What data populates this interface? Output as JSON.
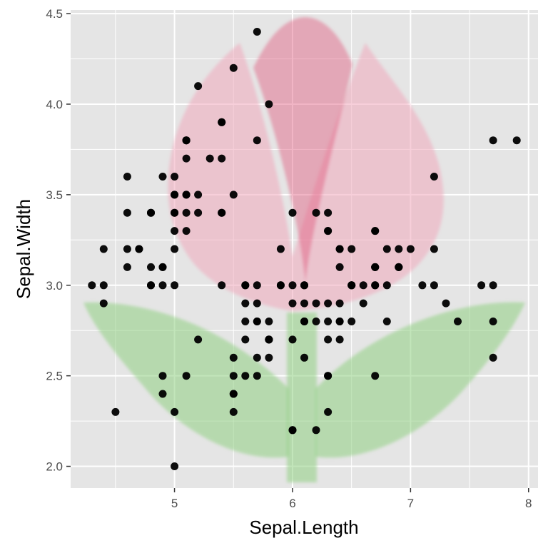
{
  "chart_data": {
    "type": "scatter",
    "xlabel": "Sepal.Length",
    "ylabel": "Sepal.Width",
    "xlim": [
      4.12,
      8.08
    ],
    "ylim": [
      1.88,
      4.52
    ],
    "x_ticks": [
      5,
      6,
      7,
      8
    ],
    "y_ticks": [
      2.0,
      2.5,
      3.0,
      3.5,
      4.0,
      4.5
    ],
    "x_tick_labels": [
      "5",
      "6",
      "7",
      "8"
    ],
    "y_tick_labels": [
      "2.0",
      "2.5",
      "3.0",
      "3.5",
      "4.0",
      "4.5"
    ],
    "grid": true,
    "legend": "none",
    "colors": {
      "panel_background": "#e5e5e5",
      "grid_line": "#ffffff",
      "point": "#000000",
      "petal_light": "#f0a8bc",
      "petal_dark": "#e05a7e",
      "stem": "#8fd081"
    },
    "background_image": "tulip",
    "points": [
      [
        5.1,
        3.5
      ],
      [
        4.9,
        3.0
      ],
      [
        4.7,
        3.2
      ],
      [
        4.6,
        3.1
      ],
      [
        5.0,
        3.6
      ],
      [
        5.4,
        3.9
      ],
      [
        4.6,
        3.4
      ],
      [
        5.0,
        3.4
      ],
      [
        4.4,
        2.9
      ],
      [
        4.9,
        3.1
      ],
      [
        5.4,
        3.7
      ],
      [
        4.8,
        3.4
      ],
      [
        4.8,
        3.0
      ],
      [
        4.3,
        3.0
      ],
      [
        5.8,
        4.0
      ],
      [
        5.7,
        4.4
      ],
      [
        5.4,
        3.9
      ],
      [
        5.1,
        3.5
      ],
      [
        5.7,
        3.8
      ],
      [
        5.1,
        3.8
      ],
      [
        5.4,
        3.4
      ],
      [
        5.1,
        3.7
      ],
      [
        4.6,
        3.6
      ],
      [
        5.1,
        3.3
      ],
      [
        4.8,
        3.4
      ],
      [
        5.0,
        3.0
      ],
      [
        5.0,
        3.4
      ],
      [
        5.2,
        3.5
      ],
      [
        5.2,
        3.4
      ],
      [
        4.7,
        3.2
      ],
      [
        4.8,
        3.1
      ],
      [
        5.4,
        3.4
      ],
      [
        5.2,
        4.1
      ],
      [
        5.5,
        4.2
      ],
      [
        4.9,
        3.1
      ],
      [
        5.0,
        3.2
      ],
      [
        5.5,
        3.5
      ],
      [
        4.9,
        3.6
      ],
      [
        4.4,
        3.0
      ],
      [
        5.1,
        3.4
      ],
      [
        5.0,
        3.5
      ],
      [
        4.5,
        2.3
      ],
      [
        4.4,
        3.2
      ],
      [
        5.0,
        3.5
      ],
      [
        5.1,
        3.8
      ],
      [
        4.8,
        3.0
      ],
      [
        5.1,
        3.8
      ],
      [
        4.6,
        3.2
      ],
      [
        5.3,
        3.7
      ],
      [
        5.0,
        3.3
      ],
      [
        7.0,
        3.2
      ],
      [
        6.4,
        3.2
      ],
      [
        6.9,
        3.1
      ],
      [
        5.5,
        2.3
      ],
      [
        6.5,
        2.8
      ],
      [
        5.7,
        2.8
      ],
      [
        6.3,
        3.3
      ],
      [
        4.9,
        2.4
      ],
      [
        6.6,
        2.9
      ],
      [
        5.2,
        2.7
      ],
      [
        5.0,
        2.0
      ],
      [
        5.9,
        3.0
      ],
      [
        6.0,
        2.2
      ],
      [
        6.1,
        2.9
      ],
      [
        5.6,
        2.9
      ],
      [
        6.7,
        3.1
      ],
      [
        5.6,
        3.0
      ],
      [
        5.8,
        2.7
      ],
      [
        6.2,
        2.2
      ],
      [
        5.6,
        2.5
      ],
      [
        5.9,
        3.2
      ],
      [
        6.1,
        2.8
      ],
      [
        6.3,
        2.5
      ],
      [
        6.1,
        2.8
      ],
      [
        6.4,
        2.9
      ],
      [
        6.6,
        3.0
      ],
      [
        6.8,
        2.8
      ],
      [
        6.7,
        3.0
      ],
      [
        6.0,
        2.9
      ],
      [
        5.7,
        2.6
      ],
      [
        5.5,
        2.4
      ],
      [
        5.5,
        2.4
      ],
      [
        5.8,
        2.7
      ],
      [
        6.0,
        2.7
      ],
      [
        5.4,
        3.0
      ],
      [
        6.0,
        3.4
      ],
      [
        6.7,
        3.1
      ],
      [
        6.3,
        2.3
      ],
      [
        5.6,
        3.0
      ],
      [
        5.5,
        2.5
      ],
      [
        5.5,
        2.6
      ],
      [
        6.1,
        3.0
      ],
      [
        5.8,
        2.6
      ],
      [
        5.0,
        2.3
      ],
      [
        5.6,
        2.7
      ],
      [
        5.7,
        3.0
      ],
      [
        5.7,
        2.9
      ],
      [
        6.2,
        2.9
      ],
      [
        5.1,
        2.5
      ],
      [
        5.7,
        2.8
      ],
      [
        6.3,
        3.3
      ],
      [
        5.8,
        2.7
      ],
      [
        7.1,
        3.0
      ],
      [
        6.3,
        2.9
      ],
      [
        6.5,
        3.0
      ],
      [
        7.6,
        3.0
      ],
      [
        4.9,
        2.5
      ],
      [
        7.3,
        2.9
      ],
      [
        6.7,
        2.5
      ],
      [
        7.2,
        3.6
      ],
      [
        6.5,
        3.2
      ],
      [
        6.4,
        2.7
      ],
      [
        6.8,
        3.0
      ],
      [
        5.7,
        2.5
      ],
      [
        5.8,
        2.8
      ],
      [
        6.4,
        3.2
      ],
      [
        6.5,
        3.0
      ],
      [
        7.7,
        3.8
      ],
      [
        7.7,
        2.6
      ],
      [
        6.0,
        2.2
      ],
      [
        6.9,
        3.2
      ],
      [
        5.6,
        2.8
      ],
      [
        7.7,
        2.8
      ],
      [
        6.3,
        2.7
      ],
      [
        6.7,
        3.3
      ],
      [
        7.2,
        3.2
      ],
      [
        6.2,
        2.8
      ],
      [
        6.1,
        3.0
      ],
      [
        6.4,
        2.8
      ],
      [
        7.2,
        3.0
      ],
      [
        7.4,
        2.8
      ],
      [
        7.9,
        3.8
      ],
      [
        6.4,
        2.8
      ],
      [
        6.3,
        2.8
      ],
      [
        6.1,
        2.6
      ],
      [
        7.7,
        3.0
      ],
      [
        6.3,
        3.4
      ],
      [
        6.4,
        3.1
      ],
      [
        6.0,
        3.0
      ],
      [
        6.9,
        3.1
      ],
      [
        6.7,
        3.1
      ],
      [
        6.9,
        3.1
      ],
      [
        5.8,
        2.7
      ],
      [
        6.8,
        3.2
      ],
      [
        6.7,
        3.3
      ],
      [
        6.7,
        3.0
      ],
      [
        6.3,
        2.5
      ],
      [
        6.5,
        3.0
      ],
      [
        6.2,
        3.4
      ],
      [
        5.9,
        3.0
      ]
    ]
  }
}
